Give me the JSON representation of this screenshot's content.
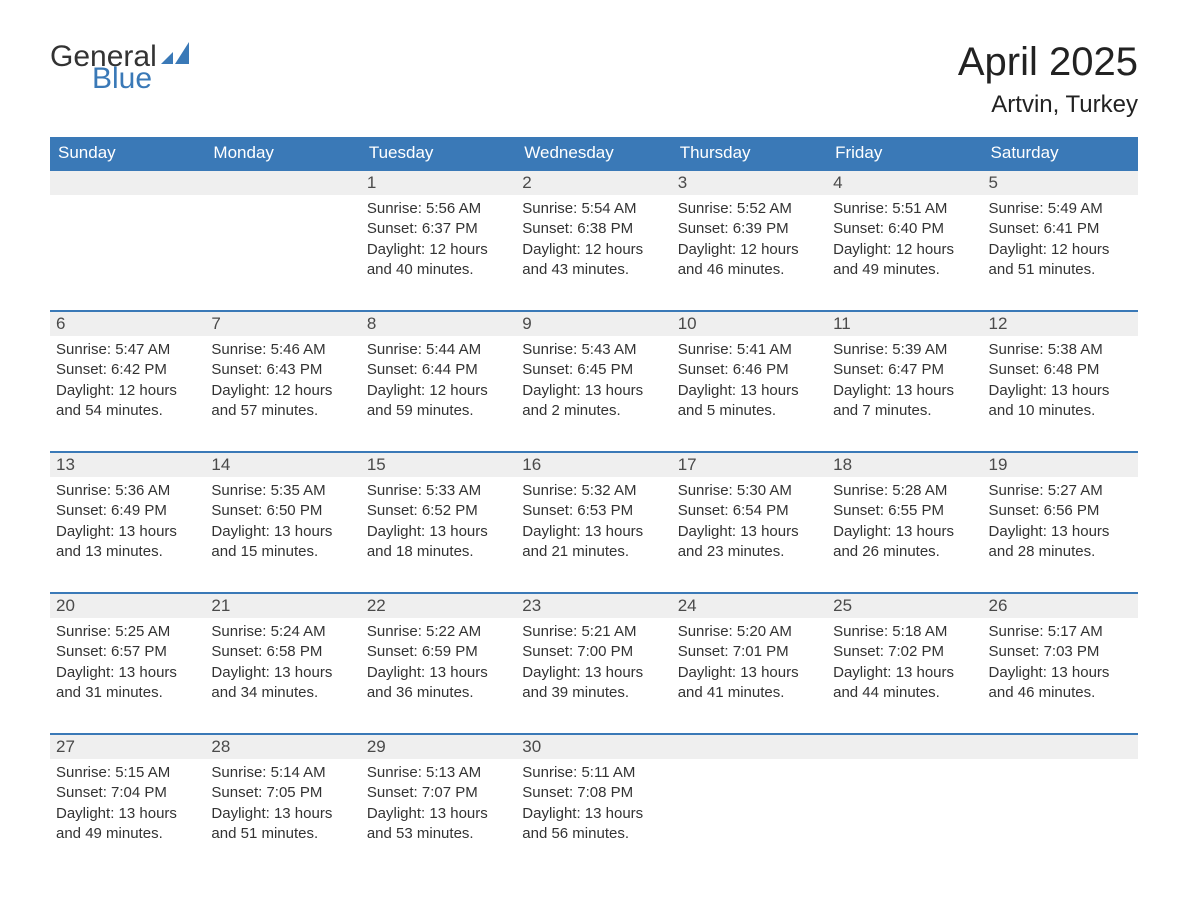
{
  "logo": {
    "text1": "General",
    "text2": "Blue",
    "icon_color": "#3a79b7"
  },
  "title": "April 2025",
  "location": "Artvin, Turkey",
  "colors": {
    "header_bg": "#3a79b7",
    "header_text": "#ffffff",
    "daynum_bg": "#efefef",
    "body_text": "#333333",
    "row_border": "#3a79b7",
    "page_bg": "#ffffff"
  },
  "fonts": {
    "title_size": 40,
    "location_size": 24,
    "header_size": 17,
    "body_size": 15
  },
  "weekdays": [
    "Sunday",
    "Monday",
    "Tuesday",
    "Wednesday",
    "Thursday",
    "Friday",
    "Saturday"
  ],
  "weeks": [
    [
      {
        "day": "",
        "sunrise": "",
        "sunset": "",
        "daylight": ""
      },
      {
        "day": "",
        "sunrise": "",
        "sunset": "",
        "daylight": ""
      },
      {
        "day": "1",
        "sunrise": "Sunrise: 5:56 AM",
        "sunset": "Sunset: 6:37 PM",
        "daylight": "Daylight: 12 hours and 40 minutes."
      },
      {
        "day": "2",
        "sunrise": "Sunrise: 5:54 AM",
        "sunset": "Sunset: 6:38 PM",
        "daylight": "Daylight: 12 hours and 43 minutes."
      },
      {
        "day": "3",
        "sunrise": "Sunrise: 5:52 AM",
        "sunset": "Sunset: 6:39 PM",
        "daylight": "Daylight: 12 hours and 46 minutes."
      },
      {
        "day": "4",
        "sunrise": "Sunrise: 5:51 AM",
        "sunset": "Sunset: 6:40 PM",
        "daylight": "Daylight: 12 hours and 49 minutes."
      },
      {
        "day": "5",
        "sunrise": "Sunrise: 5:49 AM",
        "sunset": "Sunset: 6:41 PM",
        "daylight": "Daylight: 12 hours and 51 minutes."
      }
    ],
    [
      {
        "day": "6",
        "sunrise": "Sunrise: 5:47 AM",
        "sunset": "Sunset: 6:42 PM",
        "daylight": "Daylight: 12 hours and 54 minutes."
      },
      {
        "day": "7",
        "sunrise": "Sunrise: 5:46 AM",
        "sunset": "Sunset: 6:43 PM",
        "daylight": "Daylight: 12 hours and 57 minutes."
      },
      {
        "day": "8",
        "sunrise": "Sunrise: 5:44 AM",
        "sunset": "Sunset: 6:44 PM",
        "daylight": "Daylight: 12 hours and 59 minutes."
      },
      {
        "day": "9",
        "sunrise": "Sunrise: 5:43 AM",
        "sunset": "Sunset: 6:45 PM",
        "daylight": "Daylight: 13 hours and 2 minutes."
      },
      {
        "day": "10",
        "sunrise": "Sunrise: 5:41 AM",
        "sunset": "Sunset: 6:46 PM",
        "daylight": "Daylight: 13 hours and 5 minutes."
      },
      {
        "day": "11",
        "sunrise": "Sunrise: 5:39 AM",
        "sunset": "Sunset: 6:47 PM",
        "daylight": "Daylight: 13 hours and 7 minutes."
      },
      {
        "day": "12",
        "sunrise": "Sunrise: 5:38 AM",
        "sunset": "Sunset: 6:48 PM",
        "daylight": "Daylight: 13 hours and 10 minutes."
      }
    ],
    [
      {
        "day": "13",
        "sunrise": "Sunrise: 5:36 AM",
        "sunset": "Sunset: 6:49 PM",
        "daylight": "Daylight: 13 hours and 13 minutes."
      },
      {
        "day": "14",
        "sunrise": "Sunrise: 5:35 AM",
        "sunset": "Sunset: 6:50 PM",
        "daylight": "Daylight: 13 hours and 15 minutes."
      },
      {
        "day": "15",
        "sunrise": "Sunrise: 5:33 AM",
        "sunset": "Sunset: 6:52 PM",
        "daylight": "Daylight: 13 hours and 18 minutes."
      },
      {
        "day": "16",
        "sunrise": "Sunrise: 5:32 AM",
        "sunset": "Sunset: 6:53 PM",
        "daylight": "Daylight: 13 hours and 21 minutes."
      },
      {
        "day": "17",
        "sunrise": "Sunrise: 5:30 AM",
        "sunset": "Sunset: 6:54 PM",
        "daylight": "Daylight: 13 hours and 23 minutes."
      },
      {
        "day": "18",
        "sunrise": "Sunrise: 5:28 AM",
        "sunset": "Sunset: 6:55 PM",
        "daylight": "Daylight: 13 hours and 26 minutes."
      },
      {
        "day": "19",
        "sunrise": "Sunrise: 5:27 AM",
        "sunset": "Sunset: 6:56 PM",
        "daylight": "Daylight: 13 hours and 28 minutes."
      }
    ],
    [
      {
        "day": "20",
        "sunrise": "Sunrise: 5:25 AM",
        "sunset": "Sunset: 6:57 PM",
        "daylight": "Daylight: 13 hours and 31 minutes."
      },
      {
        "day": "21",
        "sunrise": "Sunrise: 5:24 AM",
        "sunset": "Sunset: 6:58 PM",
        "daylight": "Daylight: 13 hours and 34 minutes."
      },
      {
        "day": "22",
        "sunrise": "Sunrise: 5:22 AM",
        "sunset": "Sunset: 6:59 PM",
        "daylight": "Daylight: 13 hours and 36 minutes."
      },
      {
        "day": "23",
        "sunrise": "Sunrise: 5:21 AM",
        "sunset": "Sunset: 7:00 PM",
        "daylight": "Daylight: 13 hours and 39 minutes."
      },
      {
        "day": "24",
        "sunrise": "Sunrise: 5:20 AM",
        "sunset": "Sunset: 7:01 PM",
        "daylight": "Daylight: 13 hours and 41 minutes."
      },
      {
        "day": "25",
        "sunrise": "Sunrise: 5:18 AM",
        "sunset": "Sunset: 7:02 PM",
        "daylight": "Daylight: 13 hours and 44 minutes."
      },
      {
        "day": "26",
        "sunrise": "Sunrise: 5:17 AM",
        "sunset": "Sunset: 7:03 PM",
        "daylight": "Daylight: 13 hours and 46 minutes."
      }
    ],
    [
      {
        "day": "27",
        "sunrise": "Sunrise: 5:15 AM",
        "sunset": "Sunset: 7:04 PM",
        "daylight": "Daylight: 13 hours and 49 minutes."
      },
      {
        "day": "28",
        "sunrise": "Sunrise: 5:14 AM",
        "sunset": "Sunset: 7:05 PM",
        "daylight": "Daylight: 13 hours and 51 minutes."
      },
      {
        "day": "29",
        "sunrise": "Sunrise: 5:13 AM",
        "sunset": "Sunset: 7:07 PM",
        "daylight": "Daylight: 13 hours and 53 minutes."
      },
      {
        "day": "30",
        "sunrise": "Sunrise: 5:11 AM",
        "sunset": "Sunset: 7:08 PM",
        "daylight": "Daylight: 13 hours and 56 minutes."
      },
      {
        "day": "",
        "sunrise": "",
        "sunset": "",
        "daylight": ""
      },
      {
        "day": "",
        "sunrise": "",
        "sunset": "",
        "daylight": ""
      },
      {
        "day": "",
        "sunrise": "",
        "sunset": "",
        "daylight": ""
      }
    ]
  ]
}
